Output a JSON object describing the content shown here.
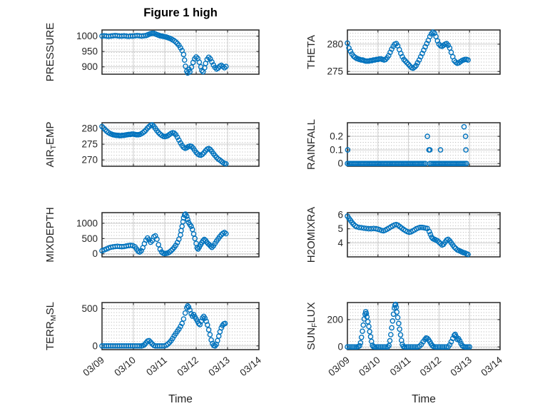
{
  "figure": {
    "title": "Figure 1 high",
    "xlabel": "Time",
    "accent_color": "#0072BD",
    "axis_color": "#262626",
    "grid_color": "#cccccc",
    "minor_grid_color": "#b3b3b3",
    "xticks": [
      0,
      1,
      2,
      3,
      4,
      5
    ],
    "xticklabels": [
      "03/09",
      "03/10",
      "03/11",
      "03/12",
      "03/13",
      "03/14"
    ]
  },
  "chart_data": [
    {
      "type": "scatter",
      "name": "PRESSURE",
      "row": 0,
      "col": 0,
      "ylabel": "PRESSURE",
      "ylabel_segments": [
        {
          "text": "PRESSURE",
          "sub": false
        }
      ],
      "xlim": [
        0,
        5
      ],
      "ylim": [
        876,
        1020
      ],
      "yticks": [
        900,
        950,
        1000
      ],
      "yticklabels": [
        "900",
        "950",
        "1000"
      ],
      "x": [
        0,
        0.07,
        0.14,
        0.21,
        0.28,
        0.35,
        0.42,
        0.49,
        0.56,
        0.63,
        0.7,
        0.77,
        0.84,
        0.91,
        0.98,
        1.05,
        1.12,
        1.19,
        1.26,
        1.33,
        1.4,
        1.45,
        1.5,
        1.55,
        1.6,
        1.65,
        1.7,
        1.75,
        1.8,
        1.85,
        1.9,
        1.95,
        2.0,
        2.05,
        2.1,
        2.15,
        2.2,
        2.25,
        2.3,
        2.35,
        2.4,
        2.45,
        2.5,
        2.55,
        2.6,
        2.63,
        2.66,
        2.7,
        2.73,
        2.77,
        2.8,
        2.85,
        2.9,
        2.95,
        3.0,
        3.05,
        3.1,
        3.15,
        3.18,
        3.22,
        3.27,
        3.3,
        3.35,
        3.4,
        3.45,
        3.5,
        3.55,
        3.6,
        3.65,
        3.7,
        3.75,
        3.8,
        3.85,
        3.9,
        3.95
      ],
      "y": [
        1000,
        1001,
        1000,
        999,
        1000,
        1001,
        1002,
        1001,
        1000,
        1000,
        1001,
        1000,
        999,
        1000,
        1000,
        1001,
        1002,
        1001,
        1000,
        1001,
        1002,
        1004,
        1006,
        1008,
        1009,
        1009,
        1007,
        1005,
        1003,
        1001,
        1000,
        999,
        998,
        997,
        995,
        993,
        991,
        988,
        985,
        981,
        976,
        970,
        962,
        953,
        940,
        922,
        902,
        886,
        880,
        892,
        884,
        899,
        914,
        926,
        932,
        927,
        915,
        900,
        888,
        884,
        897,
        911,
        924,
        931,
        926,
        916,
        906,
        898,
        893,
        896,
        902,
        905,
        901,
        897,
        901
      ]
    },
    {
      "type": "scatter",
      "name": "THETA",
      "row": 0,
      "col": 1,
      "ylabel": "THETA",
      "ylabel_segments": [
        {
          "text": "THETA",
          "sub": false
        }
      ],
      "xlim": [
        0,
        5
      ],
      "ylim": [
        274.5,
        282.6
      ],
      "yticks": [
        275,
        280
      ],
      "yticklabels": [
        "275",
        "280"
      ],
      "x0": 0,
      "dx": 0.05,
      "y": [
        280.2,
        279.3,
        278.7,
        278.2,
        277.8,
        277.6,
        277.4,
        277.3,
        277.2,
        277.1,
        277.1,
        277.0,
        276.9,
        276.9,
        276.9,
        277.0,
        277.0,
        277.1,
        277.1,
        277.2,
        277.2,
        277.3,
        277.3,
        277.2,
        277.1,
        277.2,
        277.5,
        277.9,
        278.5,
        279.1,
        279.6,
        280.0,
        280.1,
        279.7,
        279.0,
        278.3,
        277.7,
        277.2,
        276.9,
        276.6,
        276.3,
        276.0,
        275.7,
        275.6,
        275.8,
        276.1,
        276.6,
        277.1,
        277.7,
        278.3,
        278.9,
        279.5,
        280.1,
        280.7,
        281.4,
        281.9,
        282.2,
        282.0,
        281.4,
        280.6,
        280.0,
        279.7,
        279.6,
        279.8,
        280.0,
        280.1,
        279.8,
        279.3,
        278.5,
        277.7,
        277.0,
        276.7,
        276.5,
        276.6,
        276.8,
        277.0,
        277.1,
        277.2,
        277.2,
        277.1
      ]
    },
    {
      "type": "scatter",
      "name": "AIR_TEMP",
      "row": 1,
      "col": 0,
      "ylabel": "AIR_TEMP",
      "ylabel_segments": [
        {
          "text": "AIR",
          "sub": false
        },
        {
          "text": "T",
          "sub": true
        },
        {
          "text": "EMP",
          "sub": false
        }
      ],
      "xlim": [
        0,
        5
      ],
      "ylim": [
        268,
        281.8
      ],
      "yticks": [
        270,
        275,
        280
      ],
      "yticklabels": [
        "270",
        "275",
        "280"
      ],
      "x0": 0,
      "dx": 0.05,
      "y": [
        280.6,
        280.1,
        279.6,
        279.1,
        278.7,
        278.4,
        278.2,
        278.0,
        277.9,
        277.8,
        277.8,
        277.7,
        277.7,
        277.8,
        277.8,
        277.9,
        278.0,
        278.1,
        278.1,
        278.2,
        278.2,
        278.1,
        278.0,
        278.0,
        278.1,
        278.3,
        278.6,
        279.0,
        279.5,
        280.1,
        280.6,
        281.0,
        281.1,
        280.7,
        280.0,
        279.3,
        278.7,
        278.2,
        277.8,
        277.5,
        277.4,
        277.5,
        277.7,
        278.1,
        278.4,
        278.6,
        278.5,
        278.0,
        277.2,
        276.3,
        275.4,
        274.6,
        274.0,
        273.7,
        273.9,
        274.2,
        274.4,
        274.3,
        273.8,
        273.1,
        272.4,
        271.9,
        271.6,
        271.5,
        271.8,
        272.3,
        272.9,
        273.4,
        273.6,
        273.3,
        272.7,
        272.0,
        271.4,
        270.8,
        270.3,
        270.0,
        269.6,
        269.2,
        268.9,
        268.8
      ]
    },
    {
      "type": "scatter",
      "name": "RAINFALL",
      "row": 1,
      "col": 1,
      "ylabel": "RAINFALL",
      "ylabel_segments": [
        {
          "text": "RAINFALL",
          "sub": false
        }
      ],
      "xlim": [
        0,
        5
      ],
      "ylim": [
        -0.02,
        0.3
      ],
      "yticks": [
        0,
        0.1,
        0.2
      ],
      "yticklabels": [
        "0",
        "0.1",
        "0.2"
      ],
      "zero_runs": [
        {
          "from": 0,
          "to": 2.55,
          "step": 0.05,
          "value": 0
        },
        {
          "from": 2.7,
          "to": 3.9,
          "step": 0.05,
          "value": 0
        }
      ],
      "points": [
        [
          0.01,
          0.1
        ],
        [
          2.62,
          0.2
        ],
        [
          2.67,
          0.1
        ],
        [
          2.7,
          0.1
        ],
        [
          3.05,
          0.1
        ],
        [
          3.82,
          0.27
        ],
        [
          3.87,
          0.2
        ],
        [
          3.88,
          0.1
        ]
      ]
    },
    {
      "type": "scatter",
      "name": "MIXDEPTH",
      "row": 2,
      "col": 0,
      "ylabel": "MIXDEPTH",
      "ylabel_segments": [
        {
          "text": "MIXDEPTH",
          "sub": false
        }
      ],
      "xlim": [
        0,
        5
      ],
      "ylim": [
        -100,
        1350
      ],
      "yticks": [
        0,
        500,
        1000
      ],
      "yticklabels": [
        "0",
        "500",
        "1000"
      ],
      "x": [
        0,
        0.07,
        0.14,
        0.21,
        0.28,
        0.35,
        0.42,
        0.49,
        0.56,
        0.63,
        0.7,
        0.77,
        0.84,
        0.91,
        0.98,
        1.05,
        1.1,
        1.15,
        1.2,
        1.25,
        1.3,
        1.35,
        1.4,
        1.45,
        1.5,
        1.55,
        1.6,
        1.65,
        1.7,
        1.75,
        1.8,
        1.85,
        1.9,
        1.95,
        2.0,
        2.05,
        2.1,
        2.15,
        2.2,
        2.25,
        2.3,
        2.35,
        2.4,
        2.45,
        2.5,
        2.52,
        2.55,
        2.58,
        2.6,
        2.63,
        2.66,
        2.7,
        2.73,
        2.76,
        2.8,
        2.84,
        2.88,
        2.92,
        2.96,
        3.0,
        3.03,
        3.06,
        3.1,
        3.14,
        3.18,
        3.22,
        3.26,
        3.3,
        3.34,
        3.38,
        3.42,
        3.46,
        3.5,
        3.55,
        3.6,
        3.65,
        3.7,
        3.75,
        3.8,
        3.85,
        3.9,
        3.95
      ],
      "y": [
        100,
        130,
        160,
        190,
        215,
        230,
        240,
        245,
        240,
        235,
        240,
        255,
        270,
        280,
        270,
        230,
        160,
        90,
        60,
        100,
        200,
        330,
        450,
        520,
        460,
        380,
        430,
        560,
        590,
        480,
        300,
        150,
        60,
        20,
        10,
        15,
        30,
        60,
        100,
        150,
        210,
        280,
        370,
        480,
        620,
        760,
        900,
        1050,
        1180,
        1270,
        1300,
        1230,
        1130,
        1030,
        960,
        900,
        800,
        650,
        500,
        340,
        200,
        160,
        220,
        300,
        370,
        430,
        470,
        440,
        380,
        330,
        300,
        250,
        210,
        260,
        340,
        420,
        490,
        560,
        620,
        670,
        700,
        660
      ]
    },
    {
      "type": "scatter",
      "name": "H2OMIXRA",
      "row": 2,
      "col": 1,
      "ylabel": "H2OMIXRA",
      "ylabel_segments": [
        {
          "text": "H2OMIXRA",
          "sub": false
        }
      ],
      "xlim": [
        0,
        5
      ],
      "ylim": [
        3.0,
        6.15
      ],
      "yticks": [
        4,
        5,
        6
      ],
      "yticklabels": [
        "4",
        "5",
        "6"
      ],
      "x": [
        0,
        0.05,
        0.1,
        0.15,
        0.2,
        0.25,
        0.3,
        0.38,
        0.46,
        0.54,
        0.62,
        0.7,
        0.78,
        0.86,
        0.94,
        1.0,
        1.06,
        1.12,
        1.18,
        1.24,
        1.3,
        1.36,
        1.42,
        1.48,
        1.54,
        1.6,
        1.66,
        1.72,
        1.78,
        1.84,
        1.9,
        1.96,
        2.02,
        2.08,
        2.14,
        2.2,
        2.26,
        2.32,
        2.38,
        2.44,
        2.5,
        2.56,
        2.62,
        2.68,
        2.72,
        2.76,
        2.8,
        2.85,
        2.9,
        2.95,
        3.0,
        3.05,
        3.1,
        3.15,
        3.2,
        3.25,
        3.3,
        3.35,
        3.4,
        3.45,
        3.5,
        3.55,
        3.6,
        3.65,
        3.7,
        3.75,
        3.8,
        3.85,
        3.9,
        3.95
      ],
      "y": [
        5.9,
        5.75,
        5.6,
        5.45,
        5.32,
        5.22,
        5.15,
        5.1,
        5.08,
        5.05,
        5.02,
        5.0,
        5.0,
        5.02,
        5.0,
        4.97,
        4.93,
        4.88,
        4.86,
        4.9,
        4.97,
        5.05,
        5.13,
        5.2,
        5.27,
        5.3,
        5.25,
        5.15,
        5.05,
        4.95,
        4.87,
        4.8,
        4.76,
        4.78,
        4.85,
        4.92,
        5.0,
        5.06,
        5.1,
        5.1,
        5.08,
        5.05,
        5.02,
        4.8,
        4.6,
        4.4,
        4.3,
        4.25,
        4.2,
        4.15,
        4.05,
        3.95,
        3.85,
        3.9,
        4.05,
        4.2,
        4.25,
        4.15,
        4.0,
        3.85,
        3.7,
        3.6,
        3.5,
        3.45,
        3.4,
        3.35,
        3.3,
        3.28,
        3.22,
        3.18
      ]
    },
    {
      "type": "scatter",
      "name": "TERR_MSL",
      "row": 3,
      "col": 0,
      "ylabel": "TERR_MSL",
      "ylabel_segments": [
        {
          "text": "TERR",
          "sub": false
        },
        {
          "text": "M",
          "sub": true
        },
        {
          "text": "SL",
          "sub": false
        }
      ],
      "xlim": [
        0,
        5
      ],
      "ylim": [
        -50,
        580
      ],
      "yticks": [
        0,
        500
      ],
      "yticklabels": [
        "0",
        "500"
      ],
      "show_xticklabels": true,
      "x": [
        0,
        0.07,
        0.14,
        0.21,
        0.28,
        0.35,
        0.42,
        0.49,
        0.56,
        0.63,
        0.7,
        0.77,
        0.84,
        0.91,
        0.98,
        1.05,
        1.12,
        1.19,
        1.26,
        1.3,
        1.35,
        1.4,
        1.45,
        1.5,
        1.55,
        1.6,
        1.65,
        1.7,
        1.77,
        1.84,
        1.91,
        1.98,
        2.05,
        2.1,
        2.15,
        2.2,
        2.25,
        2.3,
        2.35,
        2.4,
        2.45,
        2.5,
        2.55,
        2.6,
        2.65,
        2.7,
        2.73,
        2.76,
        2.8,
        2.84,
        2.88,
        2.92,
        2.96,
        3.0,
        3.04,
        3.08,
        3.12,
        3.16,
        3.2,
        3.24,
        3.28,
        3.32,
        3.36,
        3.4,
        3.44,
        3.48,
        3.52,
        3.56,
        3.6,
        3.64,
        3.68,
        3.72,
        3.76,
        3.8,
        3.84,
        3.88,
        3.92
      ],
      "y": [
        0,
        0,
        0,
        0,
        0,
        0,
        0,
        0,
        0,
        0,
        0,
        0,
        0,
        0,
        0,
        0,
        0,
        0,
        0,
        5,
        15,
        40,
        65,
        70,
        50,
        25,
        8,
        0,
        0,
        0,
        0,
        0,
        10,
        25,
        45,
        70,
        100,
        135,
        165,
        195,
        225,
        260,
        300,
        360,
        440,
        510,
        535,
        520,
        480,
        430,
        400,
        420,
        390,
        360,
        330,
        300,
        285,
        330,
        375,
        395,
        370,
        330,
        280,
        215,
        150,
        80,
        30,
        5,
        0,
        20,
        70,
        130,
        190,
        240,
        275,
        295,
        300
      ]
    },
    {
      "type": "scatter",
      "name": "SUN_FLUX",
      "row": 3,
      "col": 1,
      "ylabel": "SUN_FLUX",
      "ylabel_segments": [
        {
          "text": "SUN",
          "sub": false
        },
        {
          "text": "F",
          "sub": true
        },
        {
          "text": "LUX",
          "sub": false
        }
      ],
      "xlim": [
        0,
        5
      ],
      "ylim": [
        -20,
        325
      ],
      "yticks": [
        0,
        200
      ],
      "yticklabels": [
        "0",
        "200"
      ],
      "show_xticklabels": true,
      "x": [
        0,
        0.06,
        0.12,
        0.18,
        0.24,
        0.3,
        0.35,
        0.4,
        0.43,
        0.46,
        0.49,
        0.52,
        0.55,
        0.58,
        0.6,
        0.62,
        0.64,
        0.67,
        0.7,
        0.73,
        0.76,
        0.79,
        0.82,
        0.85,
        0.9,
        0.96,
        1.02,
        1.08,
        1.14,
        1.2,
        1.26,
        1.32,
        1.36,
        1.39,
        1.42,
        1.45,
        1.48,
        1.51,
        1.54,
        1.56,
        1.58,
        1.6,
        1.62,
        1.65,
        1.68,
        1.71,
        1.74,
        1.77,
        1.8,
        1.83,
        1.88,
        1.94,
        2.0,
        2.06,
        2.12,
        2.18,
        2.24,
        2.3,
        2.36,
        2.42,
        2.48,
        2.54,
        2.58,
        2.62,
        2.66,
        2.7,
        2.74,
        2.78,
        2.82,
        2.88,
        2.94,
        3.0,
        3.06,
        3.12,
        3.18,
        3.24,
        3.3,
        3.35,
        3.4,
        3.45,
        3.5,
        3.53,
        3.56,
        3.6,
        3.64,
        3.68,
        3.72,
        3.76,
        3.8,
        3.85,
        3.9,
        3.95,
        4.0
      ],
      "y": [
        0,
        0,
        0,
        0,
        0,
        0,
        2,
        8,
        30,
        70,
        115,
        160,
        205,
        240,
        258,
        245,
        220,
        185,
        150,
        112,
        75,
        40,
        12,
        2,
        0,
        0,
        0,
        0,
        0,
        0,
        0,
        0,
        10,
        45,
        90,
        140,
        190,
        240,
        285,
        305,
        312,
        290,
        255,
        215,
        172,
        130,
        88,
        48,
        18,
        4,
        0,
        0,
        0,
        0,
        0,
        0,
        0,
        0,
        5,
        18,
        38,
        55,
        65,
        62,
        52,
        38,
        22,
        10,
        3,
        0,
        0,
        0,
        0,
        0,
        0,
        0,
        0,
        15,
        38,
        62,
        85,
        92,
        75,
        55,
        60,
        45,
        25,
        10,
        3,
        0,
        0,
        0,
        0
      ]
    }
  ]
}
